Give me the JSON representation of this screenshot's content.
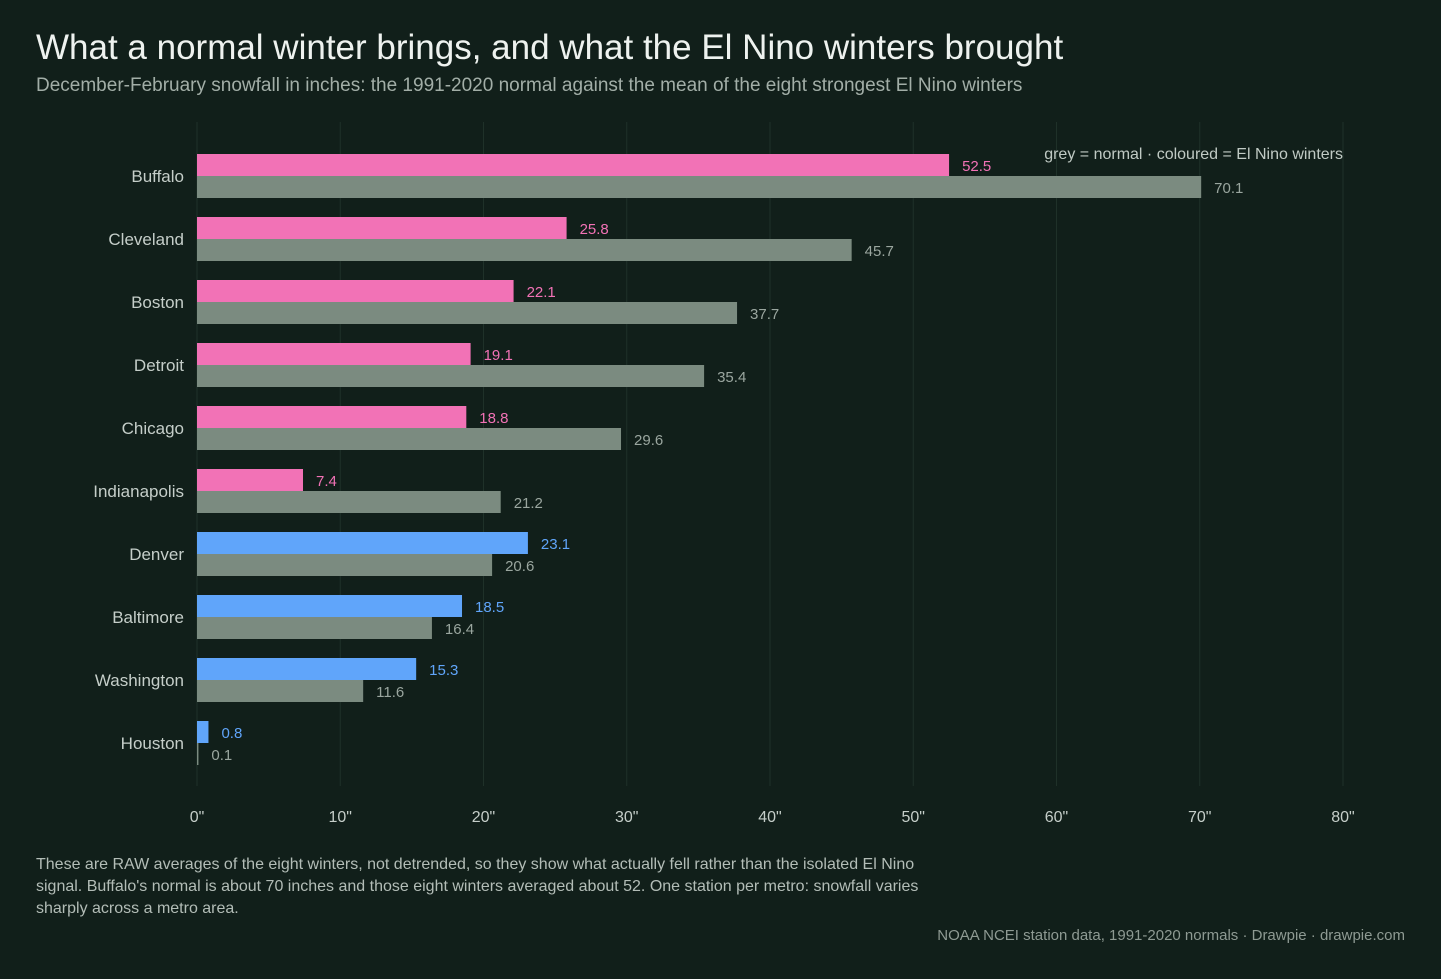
{
  "title": "What a normal winter brings, and what the El Nino winters brought",
  "subtitle": "December-February snowfall in inches: the 1991-2020 normal against the mean of the eight strongest El Nino winters",
  "chart_data": {
    "type": "bar",
    "orientation": "horizontal",
    "categories": [
      "Buffalo",
      "Cleveland",
      "Boston",
      "Detroit",
      "Chicago",
      "Indianapolis",
      "Denver",
      "Baltimore",
      "Washington",
      "Houston"
    ],
    "series": [
      {
        "key": "elnino",
        "values": [
          52.5,
          25.8,
          22.1,
          19.1,
          18.8,
          7.4,
          23.1,
          18.5,
          15.3,
          0.8
        ],
        "colors": [
          "#f272b6",
          "#f272b6",
          "#f272b6",
          "#f272b6",
          "#f272b6",
          "#f272b6",
          "#60a5fa",
          "#60a5fa",
          "#60a5fa",
          "#60a5fa"
        ]
      },
      {
        "key": "normal",
        "values": [
          70.1,
          45.7,
          37.7,
          35.4,
          29.6,
          21.2,
          20.6,
          16.4,
          11.6,
          0.1
        ],
        "color": "#7b8b80"
      }
    ],
    "xlim": [
      0,
      80
    ],
    "xticks": [
      0,
      10,
      20,
      30,
      40,
      50,
      60,
      70,
      80
    ],
    "tick_suffix": "\"",
    "grid": "vertical",
    "legend": "grey = normal   ·   coloured = El Nino winters",
    "legend_position": "top-right"
  },
  "footnote": "These are RAW averages of the eight winters, not detrended, so they show what actually fell rather than the isolated El Nino signal. Buffalo's normal is about 70 inches and those eight winters averaged about 52. One station per metro: snowfall varies sharply across a metro area.",
  "source": "NOAA NCEI station data, 1991-2020 normals  ·  Drawpie · drawpie.com",
  "colors": {
    "background": "#111f1a",
    "grid": "#1f3129",
    "label": "#c5cec9",
    "normal_label": "#9aa69f"
  }
}
